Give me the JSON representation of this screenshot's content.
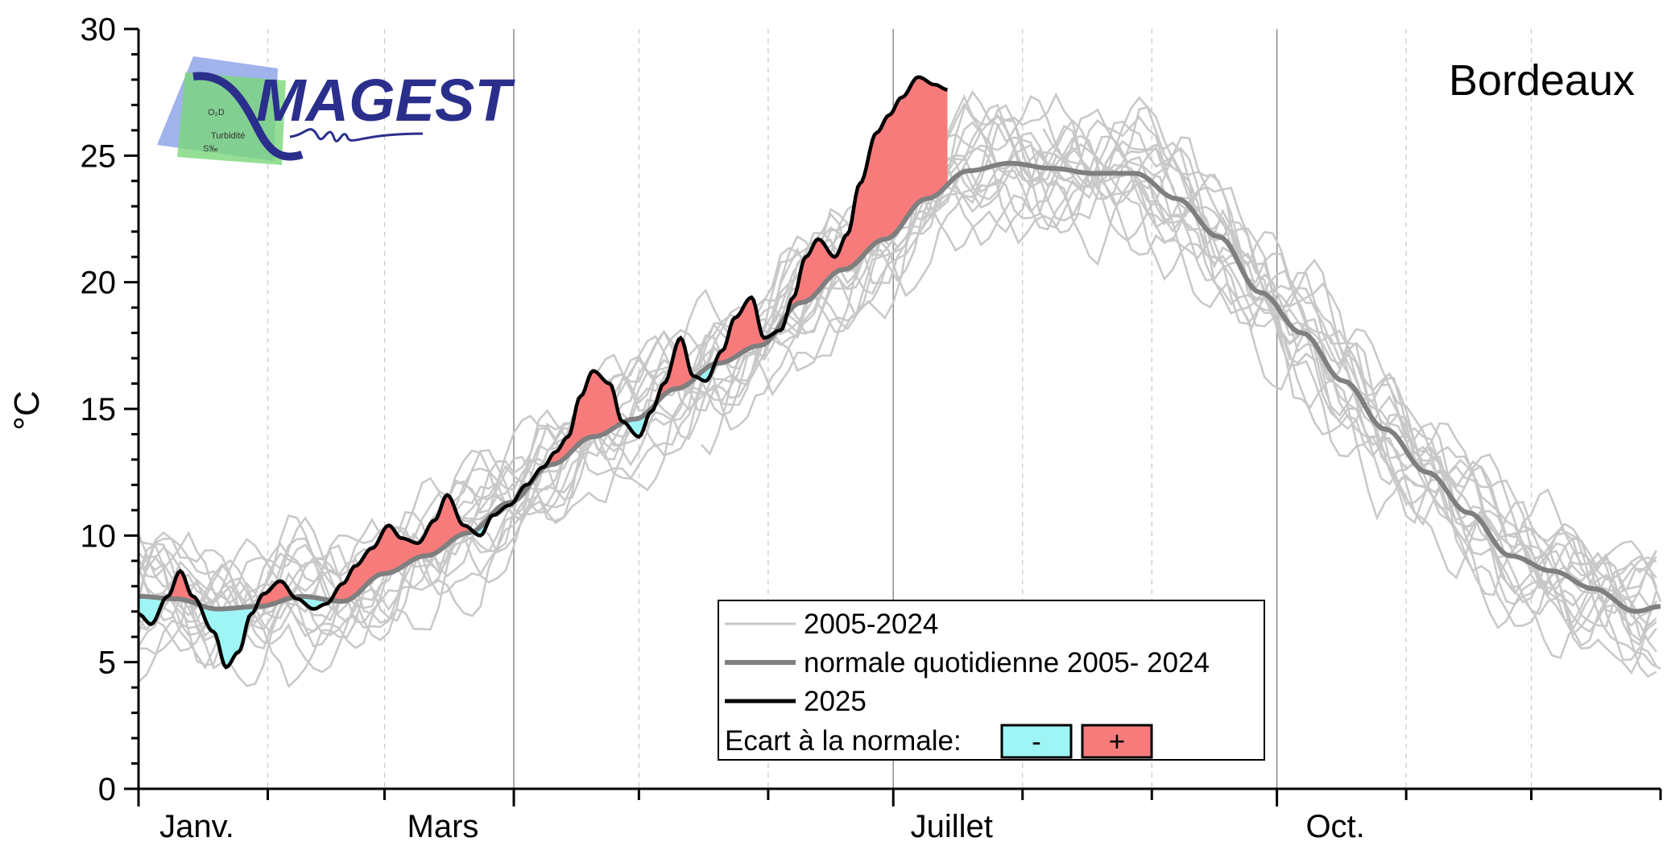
{
  "chart_data": {
    "type": "line",
    "title": "Bordeaux",
    "xlabel": "",
    "ylabel": "°C",
    "ylim": [
      0,
      30
    ],
    "yticks": [
      0,
      5,
      10,
      15,
      20,
      25,
      30
    ],
    "xlim": [
      1,
      366
    ],
    "x_tick_labels": [
      {
        "label": "Janv.",
        "day": 15
      },
      {
        "label": "Mars",
        "day": 74
      },
      {
        "label": "Juillet",
        "day": 196
      },
      {
        "label": "Oct.",
        "day": 288
      }
    ],
    "major_month_starts": [
      1,
      91,
      182,
      274
    ],
    "minor_month_starts": [
      32,
      60,
      121,
      152,
      213,
      244,
      305,
      335,
      366
    ],
    "grid": true,
    "legend_position": "bottom-center",
    "legend": {
      "historical_label": "2005-2024",
      "normal_label": "normale quotidienne 2005- 2024",
      "current_label": "2025",
      "deviation_label": "Ecart à la normale:",
      "negative_symbol": "-",
      "positive_symbol": "+"
    },
    "colors": {
      "historical": "#c8c8c8",
      "normal": "#7f7f7f",
      "current": "#000000",
      "negative_fill": "#9ff5f5",
      "positive_fill": "#f77b7b"
    },
    "series": [
      {
        "name": "normale quotidienne 2005- 2024",
        "x": [
          1,
          10,
          20,
          30,
          40,
          50,
          60,
          70,
          80,
          90,
          100,
          110,
          120,
          130,
          140,
          150,
          160,
          170,
          180,
          190,
          200,
          210,
          220,
          230,
          240,
          250,
          260,
          270,
          280,
          290,
          300,
          310,
          320,
          330,
          340,
          350,
          360,
          366
        ],
        "y": [
          7.6,
          7.5,
          7.1,
          7.2,
          7.6,
          7.4,
          8.5,
          9.2,
          10.1,
          11.3,
          12.8,
          13.9,
          14.6,
          15.8,
          16.8,
          17.5,
          19.2,
          20.5,
          21.7,
          23.3,
          24.4,
          24.7,
          24.5,
          24.3,
          24.3,
          23.3,
          21.8,
          19.6,
          18.0,
          16.1,
          14.2,
          12.5,
          10.9,
          9.2,
          8.6,
          7.9,
          7.0,
          7.2
        ]
      },
      {
        "name": "2025",
        "x": [
          1,
          4,
          8,
          11,
          14,
          19,
          22,
          25,
          28,
          31,
          35,
          39,
          43,
          46,
          50,
          53,
          57,
          61,
          64,
          68,
          72,
          75,
          79,
          83,
          86,
          90,
          94,
          98,
          101,
          104,
          107,
          110,
          114,
          117,
          121,
          124,
          127,
          131,
          134,
          137,
          141,
          144,
          148,
          151,
          155,
          158,
          161,
          164,
          168,
          171,
          174,
          178,
          181,
          184,
          188,
          192,
          195
        ],
        "y": [
          6.9,
          6.5,
          7.6,
          8.6,
          7.6,
          6.2,
          4.8,
          5.4,
          6.9,
          7.7,
          8.2,
          7.5,
          7.1,
          7.3,
          8.1,
          8.8,
          9.5,
          10.4,
          9.9,
          9.7,
          10.6,
          11.6,
          10.4,
          10.0,
          10.8,
          11.2,
          12.0,
          12.7,
          13.3,
          13.9,
          15.5,
          16.5,
          16.0,
          14.5,
          13.9,
          14.9,
          16.0,
          17.8,
          16.3,
          16.1,
          17.3,
          18.6,
          19.4,
          17.8,
          18.1,
          19.4,
          21.0,
          21.7,
          21.0,
          21.9,
          23.9,
          25.9,
          26.6,
          27.3,
          28.1,
          27.8,
          27.6
        ]
      }
    ]
  },
  "logo": {
    "text": "MAGEST",
    "small_labels": [
      "O₂D",
      "Turbidité",
      "S‰"
    ]
  }
}
